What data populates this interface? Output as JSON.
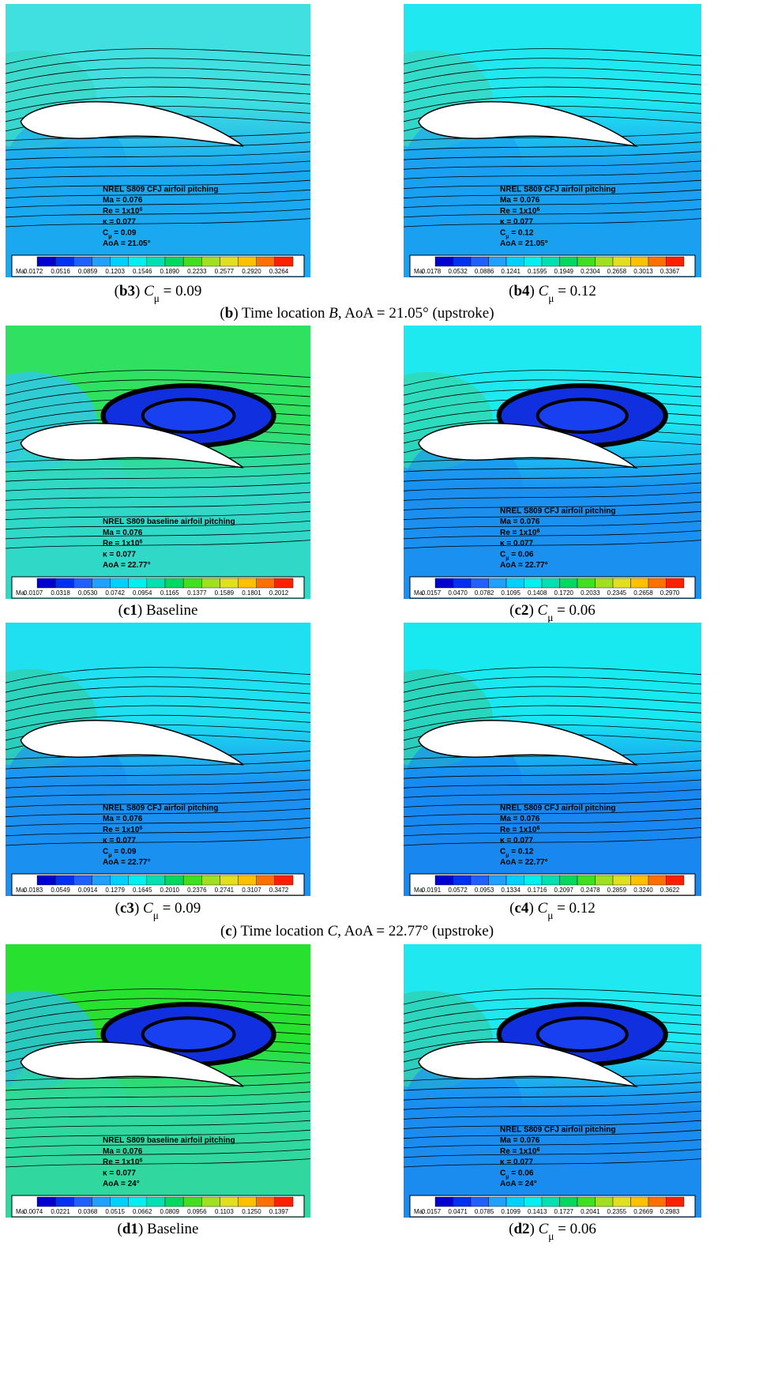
{
  "panels": [
    {
      "annotation": [
        [
          {
            "text": "NREL S809 CFJ airfoil pitching"
          }
        ],
        [
          {
            "text": "Ma = 0.076"
          }
        ],
        [
          {
            "text": "Re = 1x10"
          },
          {
            "text": "6",
            "style": "sup"
          }
        ],
        [
          {
            "text": "κ = 0.077"
          }
        ],
        [
          {
            "text": "C"
          },
          {
            "text": "μ",
            "style": "sub"
          },
          {
            "text": " = 0.09"
          }
        ],
        [
          {
            "text": "AoA = 21.05°"
          }
        ]
      ],
      "colorbar_label": "Ma:",
      "colorbar_ticks": [
        "0.0172",
        "0.0516",
        "0.0859",
        "0.1203",
        "0.1546",
        "0.1890",
        "0.2233",
        "0.2577",
        "0.2920",
        "0.3264"
      ],
      "caption": [
        {
          "text": "("
        },
        {
          "text": "b3",
          "style": "bold"
        },
        {
          "text": ") "
        },
        {
          "text": "C",
          "style": "italic"
        },
        {
          "text": "μ",
          "style": "sub"
        },
        {
          "text": " = 0.09"
        }
      ]
    },
    {
      "annotation": [
        [
          {
            "text": "NREL S809 CFJ airfoil pitching"
          }
        ],
        [
          {
            "text": "Ma = 0.076"
          }
        ],
        [
          {
            "text": "Re = 1x10"
          },
          {
            "text": "6",
            "style": "sup"
          }
        ],
        [
          {
            "text": "κ = 0.077"
          }
        ],
        [
          {
            "text": "C"
          },
          {
            "text": "μ",
            "style": "sub"
          },
          {
            "text": " = 0.12"
          }
        ],
        [
          {
            "text": "AoA = 21.05°"
          }
        ]
      ],
      "colorbar_label": "Ma:",
      "colorbar_ticks": [
        "0.0178",
        "0.0532",
        "0.0886",
        "0.1241",
        "0.1595",
        "0.1949",
        "0.2304",
        "0.2658",
        "0.3013",
        "0.3367"
      ],
      "caption": [
        {
          "text": "("
        },
        {
          "text": "b4",
          "style": "bold"
        },
        {
          "text": ") "
        },
        {
          "text": "C",
          "style": "italic"
        },
        {
          "text": "μ",
          "style": "sub"
        },
        {
          "text": " = 0.12"
        }
      ]
    },
    {
      "annotation": [
        [
          {
            "text": "NREL S809 baseline airfoil pitching"
          }
        ],
        [
          {
            "text": "Ma = 0.076"
          }
        ],
        [
          {
            "text": "Re = 1x10"
          },
          {
            "text": "6",
            "style": "sup"
          }
        ],
        [
          {
            "text": "κ = 0.077"
          }
        ],
        [
          {
            "text": "AoA = 22.77°"
          }
        ]
      ],
      "colorbar_label": "Ma:",
      "colorbar_ticks": [
        "0.0107",
        "0.0318",
        "0.0530",
        "0.0742",
        "0.0954",
        "0.1165",
        "0.1377",
        "0.1589",
        "0.1801",
        "0.2012"
      ],
      "caption": [
        {
          "text": "("
        },
        {
          "text": "c1",
          "style": "bold"
        },
        {
          "text": ") Baseline"
        }
      ]
    },
    {
      "annotation": [
        [
          {
            "text": "NREL S809 CFJ airfoil pitching"
          }
        ],
        [
          {
            "text": "Ma = 0.076"
          }
        ],
        [
          {
            "text": "Re = 1x10"
          },
          {
            "text": "6",
            "style": "sup"
          }
        ],
        [
          {
            "text": "κ = 0.077"
          }
        ],
        [
          {
            "text": "C"
          },
          {
            "text": "μ",
            "style": "sub"
          },
          {
            "text": " = 0.06"
          }
        ],
        [
          {
            "text": "AoA = 22.77°"
          }
        ]
      ],
      "colorbar_label": "Ma:",
      "colorbar_ticks": [
        "0.0157",
        "0.0470",
        "0.0782",
        "0.1095",
        "0.1408",
        "0.1720",
        "0.2033",
        "0.2345",
        "0.2658",
        "0.2970"
      ],
      "caption": [
        {
          "text": "("
        },
        {
          "text": "c2",
          "style": "bold"
        },
        {
          "text": ") "
        },
        {
          "text": "C",
          "style": "italic"
        },
        {
          "text": "μ",
          "style": "sub"
        },
        {
          "text": " = 0.06"
        }
      ]
    },
    {
      "annotation": [
        [
          {
            "text": "NREL S809 CFJ airfoil pitching"
          }
        ],
        [
          {
            "text": "Ma = 0.076"
          }
        ],
        [
          {
            "text": "Re = 1x10"
          },
          {
            "text": "6",
            "style": "sup"
          }
        ],
        [
          {
            "text": "κ = 0.077"
          }
        ],
        [
          {
            "text": "C"
          },
          {
            "text": "μ",
            "style": "sub"
          },
          {
            "text": " = 0.09"
          }
        ],
        [
          {
            "text": "AoA = 22.77°"
          }
        ]
      ],
      "colorbar_label": "Ma:",
      "colorbar_ticks": [
        "0.0183",
        "0.0549",
        "0.0914",
        "0.1279",
        "0.1645",
        "0.2010",
        "0.2376",
        "0.2741",
        "0.3107",
        "0.3472"
      ],
      "caption": [
        {
          "text": "("
        },
        {
          "text": "c3",
          "style": "bold"
        },
        {
          "text": ") "
        },
        {
          "text": "C",
          "style": "italic"
        },
        {
          "text": "μ",
          "style": "sub"
        },
        {
          "text": " = 0.09"
        }
      ]
    },
    {
      "annotation": [
        [
          {
            "text": "NREL S809 CFJ airfoil pitching"
          }
        ],
        [
          {
            "text": "Ma = 0.076"
          }
        ],
        [
          {
            "text": "Re = 1x10"
          },
          {
            "text": "6",
            "style": "sup"
          }
        ],
        [
          {
            "text": "κ = 0.077"
          }
        ],
        [
          {
            "text": "C"
          },
          {
            "text": "μ",
            "style": "sub"
          },
          {
            "text": " = 0.12"
          }
        ],
        [
          {
            "text": "AoA = 22.77°"
          }
        ]
      ],
      "colorbar_label": "Ma:",
      "colorbar_ticks": [
        "0.0191",
        "0.0572",
        "0.0953",
        "0.1334",
        "0.1716",
        "0.2097",
        "0.2478",
        "0.2859",
        "0.3240",
        "0.3622"
      ],
      "caption": [
        {
          "text": "("
        },
        {
          "text": "c4",
          "style": "bold"
        },
        {
          "text": ") "
        },
        {
          "text": "C",
          "style": "italic"
        },
        {
          "text": "μ",
          "style": "sub"
        },
        {
          "text": " = 0.12"
        }
      ]
    },
    {
      "annotation": [
        [
          {
            "text": "NREL S809 baseline airfoil pitching"
          }
        ],
        [
          {
            "text": "Ma = 0.076"
          }
        ],
        [
          {
            "text": "Re = 1x10"
          },
          {
            "text": "6",
            "style": "sup"
          }
        ],
        [
          {
            "text": "κ = 0.077"
          }
        ],
        [
          {
            "text": "AoA = 24°"
          }
        ]
      ],
      "colorbar_label": "Ma:",
      "colorbar_ticks": [
        "0.0074",
        "0.0221",
        "0.0368",
        "0.0515",
        "0.0662",
        "0.0809",
        "0.0956",
        "0.1103",
        "0.1250",
        "0.1397"
      ],
      "caption": [
        {
          "text": "("
        },
        {
          "text": "d1",
          "style": "bold"
        },
        {
          "text": ") Baseline"
        }
      ]
    },
    {
      "annotation": [
        [
          {
            "text": "NREL S809 CFJ airfoil pitching"
          }
        ],
        [
          {
            "text": "Ma = 0.076"
          }
        ],
        [
          {
            "text": "Re = 1x10"
          },
          {
            "text": "6",
            "style": "sup"
          }
        ],
        [
          {
            "text": "κ = 0.077"
          }
        ],
        [
          {
            "text": "C"
          },
          {
            "text": "μ",
            "style": "sub"
          },
          {
            "text": " = 0.06"
          }
        ],
        [
          {
            "text": "AoA = 24°"
          }
        ]
      ],
      "colorbar_label": "Ma:",
      "colorbar_ticks": [
        "0.0157",
        "0.0471",
        "0.0785",
        "0.1099",
        "0.1413",
        "0.1727",
        "0.2041",
        "0.2355",
        "0.2669",
        "0.2983"
      ],
      "caption": [
        {
          "text": "("
        },
        {
          "text": "d2",
          "style": "bold"
        },
        {
          "text": ") "
        },
        {
          "text": "C",
          "style": "italic"
        },
        {
          "text": "μ",
          "style": "sub"
        },
        {
          "text": " = 0.06"
        }
      ]
    }
  ],
  "group_captions": [
    [
      {
        "text": "("
      },
      {
        "text": "b",
        "style": "bold"
      },
      {
        "text": ") Time location "
      },
      {
        "text": "B",
        "style": "italic"
      },
      {
        "text": ", AoA = 21.05° (upstroke)"
      }
    ],
    [
      {
        "text": "("
      },
      {
        "text": "c",
        "style": "bold"
      },
      {
        "text": ") Time location "
      },
      {
        "text": "C",
        "style": "italic"
      },
      {
        "text": ", AoA = 22.77° (upstroke)"
      }
    ]
  ]
}
